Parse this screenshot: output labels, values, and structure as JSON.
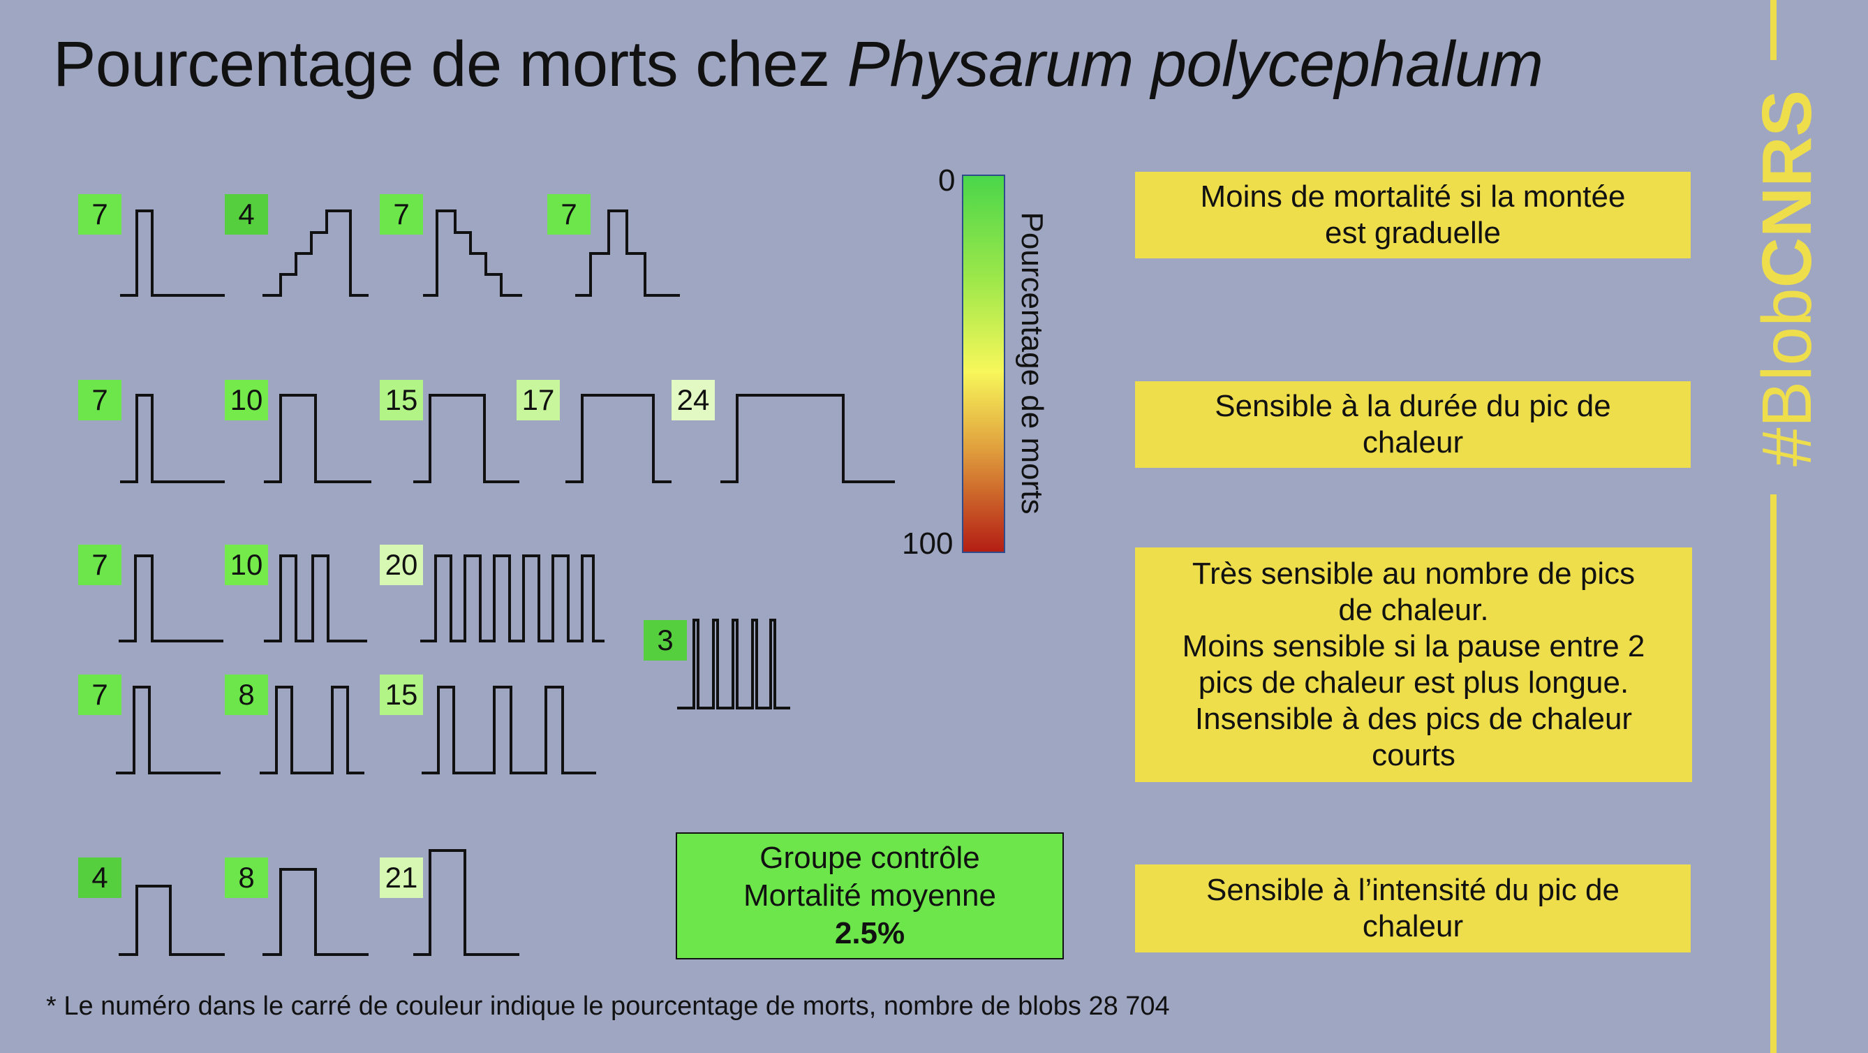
{
  "title": {
    "main": "Pourcentage de morts chez ",
    "species": "Physarum polycephalum"
  },
  "colors": {
    "background": "#9fa6c2",
    "note_fill": "#efde4c",
    "control_fill": "#6ce64a",
    "brand": "#efde4c",
    "badge_levels": {
      "3": "#56cf3e",
      "4": "#56cf3e",
      "7": "#6ce64a",
      "8": "#6ce64a",
      "10": "#74eb4a",
      "15": "#b3f486",
      "17": "#c7f69d",
      "20": "#d7f8b3",
      "21": "#d7f8b3",
      "24": "#e3f9c3"
    }
  },
  "badges": [
    {
      "id": "r1-a",
      "value": "7",
      "pct": 7
    },
    {
      "id": "r1-b",
      "value": "4",
      "pct": 4
    },
    {
      "id": "r1-c",
      "value": "7",
      "pct": 7
    },
    {
      "id": "r1-d",
      "value": "7",
      "pct": 7
    },
    {
      "id": "r2-a",
      "value": "7",
      "pct": 7
    },
    {
      "id": "r2-b",
      "value": "10",
      "pct": 10
    },
    {
      "id": "r2-c",
      "value": "15",
      "pct": 15
    },
    {
      "id": "r2-d",
      "value": "17",
      "pct": 17
    },
    {
      "id": "r2-e",
      "value": "24",
      "pct": 24
    },
    {
      "id": "r3-a",
      "value": "7",
      "pct": 7
    },
    {
      "id": "r3-b",
      "value": "10",
      "pct": 10
    },
    {
      "id": "r3-c",
      "value": "20",
      "pct": 20
    },
    {
      "id": "r3-d",
      "value": "3",
      "pct": 3
    },
    {
      "id": "r4-a",
      "value": "7",
      "pct": 7
    },
    {
      "id": "r4-b",
      "value": "8",
      "pct": 8
    },
    {
      "id": "r4-c",
      "value": "15",
      "pct": 15
    },
    {
      "id": "r5-a",
      "value": "4",
      "pct": 4
    },
    {
      "id": "r5-b",
      "value": "8",
      "pct": 8
    },
    {
      "id": "r5-c",
      "value": "21",
      "pct": 21
    }
  ],
  "scale": {
    "min_label": "0",
    "max_label": "100",
    "label": "Pourcentage de morts"
  },
  "notes": {
    "gradual": "Moins de mortalité si la montée\nest graduelle",
    "duration": "Sensible à la durée du pic de\nchaleur",
    "count": "Très sensible au nombre de pics\nde chaleur.\nMoins sensible si la pause entre 2\npics de chaleur est plus longue.\nInsensible à des pics de chaleur\ncourts",
    "intensity": "Sensible à l’intensité du pic de\nchaleur"
  },
  "control": {
    "line1": "Groupe contrôle",
    "line2": "Mortalité moyenne",
    "value": "2.5%"
  },
  "footnote": "* Le numéro dans le carré de couleur indique  le  pourcentage  de morts, nombre de blobs  28 704",
  "brand": {
    "prefix": "#Blob",
    "name": "CNRS"
  }
}
